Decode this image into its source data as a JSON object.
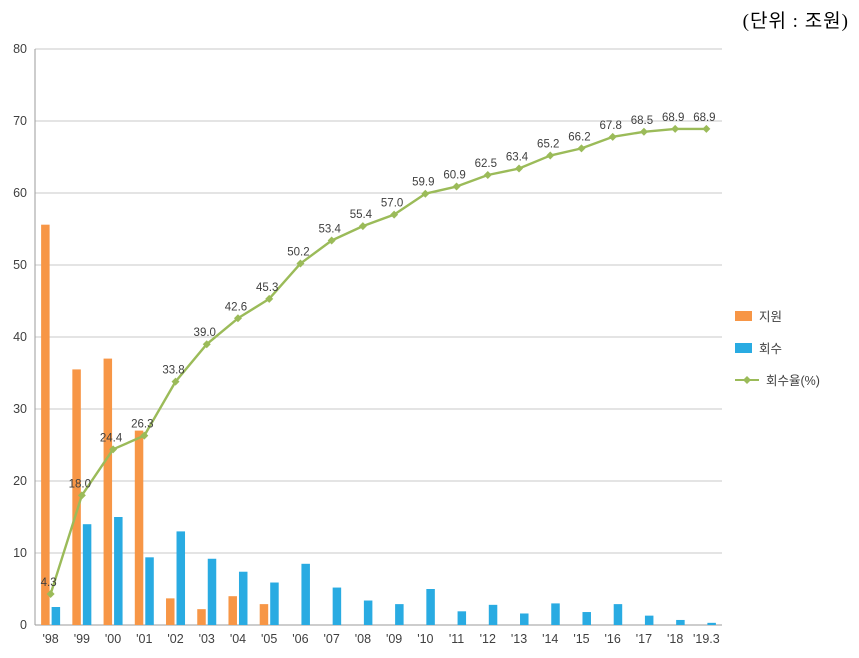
{
  "unit_label": "(단위 : 조원)",
  "chart_data": {
    "type": "combo",
    "title": "",
    "xlabel": "",
    "ylabel": "",
    "ylim": [
      0,
      80
    ],
    "y_ticks": [
      0,
      10,
      20,
      30,
      40,
      50,
      60,
      70,
      80
    ],
    "grid": true,
    "legend_position": "right",
    "categories": [
      "'98",
      "'99",
      "'00",
      "'01",
      "'02",
      "'03",
      "'04",
      "'05",
      "'06",
      "'07",
      "'08",
      "'09",
      "'10",
      "'11",
      "'12",
      "'13",
      "'14",
      "'15",
      "'16",
      "'17",
      "'18",
      "'19.3"
    ],
    "series": [
      {
        "name": "지원",
        "type": "bar",
        "color": "#F79646",
        "values": [
          55.6,
          35.5,
          37.0,
          27.0,
          3.7,
          2.2,
          4.0,
          2.9,
          0,
          0,
          0,
          0,
          0,
          0,
          0,
          0,
          0,
          0,
          0,
          0,
          0,
          0
        ]
      },
      {
        "name": "회수",
        "type": "bar",
        "color": "#29ABE2",
        "values": [
          2.5,
          14.0,
          15.0,
          9.4,
          13.0,
          9.2,
          7.4,
          5.9,
          8.5,
          5.2,
          3.4,
          2.9,
          5.0,
          1.9,
          2.8,
          1.6,
          3.0,
          1.8,
          2.9,
          1.3,
          0.7,
          0.3
        ]
      },
      {
        "name": "회수율(%)",
        "type": "line",
        "color": "#9BBB59",
        "data_labels": true,
        "values": [
          4.3,
          18.0,
          24.4,
          26.3,
          33.8,
          39.0,
          42.6,
          45.3,
          50.2,
          53.4,
          55.4,
          57.0,
          59.9,
          60.9,
          62.5,
          63.4,
          65.2,
          66.2,
          67.8,
          68.5,
          68.9,
          68.9
        ]
      }
    ]
  }
}
